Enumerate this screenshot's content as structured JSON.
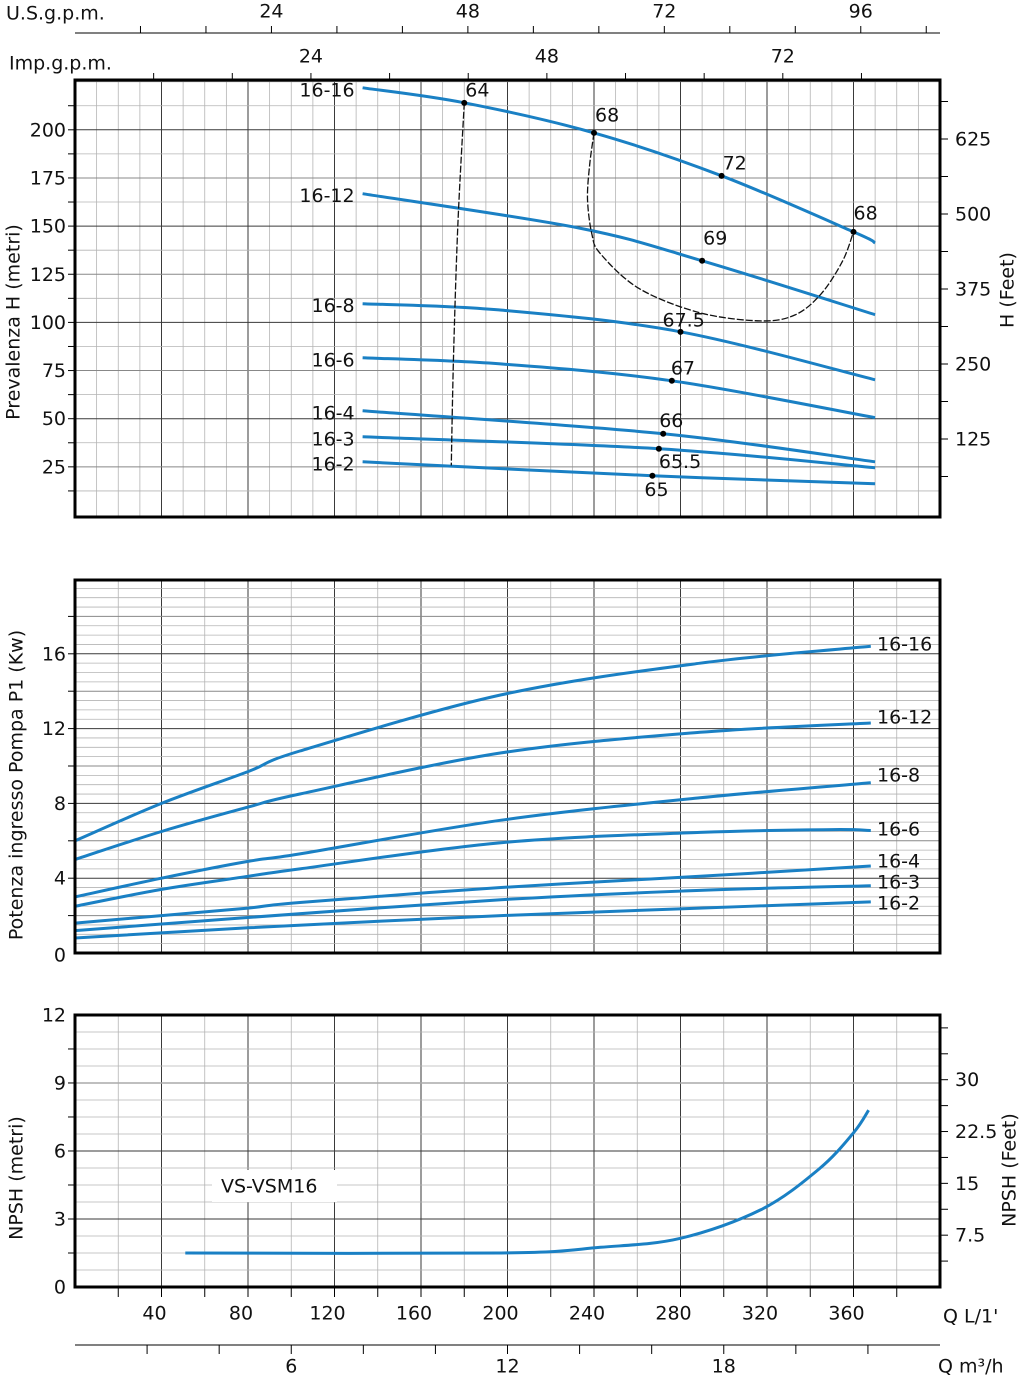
{
  "colors": {
    "curve": "#1a80c4",
    "efficiency_line": "#111111",
    "grid_light": "#b4b4b4",
    "grid_dark": "#3a3a3a",
    "frame": "#000000"
  },
  "top_axes": {
    "usgpm": {
      "label": "U.S.g.p.m.",
      "ticks": [
        24,
        48,
        72,
        96
      ]
    },
    "impgpm": {
      "label": "Imp.g.p.m.",
      "ticks": [
        24,
        48,
        72
      ]
    }
  },
  "bottom_axes": {
    "lmin": {
      "label": "Q L/1'",
      "ticks": [
        40,
        80,
        120,
        160,
        200,
        240,
        280,
        320,
        360
      ]
    },
    "m3h": {
      "label": "Q m³/h",
      "ticks": [
        6,
        12,
        18
      ]
    }
  },
  "chart_data": [
    {
      "type": "line",
      "title": "",
      "xlabel": "Q L/1'",
      "ylabel": "Prevalenza H (metri)",
      "ylabel_right": "H (Feet)",
      "xlim": [
        0,
        400
      ],
      "ylim": [
        0,
        225
      ],
      "yticks": [
        25,
        50,
        75,
        100,
        125,
        150,
        175,
        200
      ],
      "yticks_right": [
        125,
        250,
        375,
        500,
        625
      ],
      "grid": true,
      "series": [
        {
          "name": "16-16",
          "points": [
            [
              133,
              221.8
            ],
            [
              180,
              214
            ],
            [
              240,
              198.4
            ],
            [
              299,
              176.1
            ],
            [
              360,
              147
            ],
            [
              370,
              141.3
            ]
          ]
        },
        {
          "name": "16-12",
          "points": [
            [
              133,
              166.8
            ],
            [
              233,
              149
            ],
            [
              290,
              132
            ],
            [
              370,
              104
            ]
          ]
        },
        {
          "name": "16-8",
          "points": [
            [
              133,
              109.7
            ],
            [
              196,
              106.5
            ],
            [
              280,
              95.1
            ],
            [
              370,
              70.2
            ]
          ]
        },
        {
          "name": "16-6",
          "points": [
            [
              133,
              81.6
            ],
            [
              196,
              78.5
            ],
            [
              276,
              69.7
            ],
            [
              370,
              50.5
            ]
          ]
        },
        {
          "name": "16-4",
          "points": [
            [
              133,
              54.1
            ],
            [
              272,
              42.2
            ],
            [
              370,
              27.6
            ]
          ]
        },
        {
          "name": "16-3",
          "points": [
            [
              133,
              40.6
            ],
            [
              270,
              34.4
            ],
            [
              370,
              24.5
            ]
          ]
        },
        {
          "name": "16-2",
          "points": [
            [
              133,
              27.6
            ],
            [
              267,
              20.4
            ],
            [
              370,
              16.2
            ]
          ]
        }
      ],
      "efficiency_points": [
        {
          "label": "64",
          "x": 180,
          "y": 214
        },
        {
          "label": "68",
          "x": 240,
          "y": 198.4
        },
        {
          "label": "72",
          "x": 299,
          "y": 176.1
        },
        {
          "label": "68",
          "x": 360,
          "y": 147
        },
        {
          "label": "69",
          "x": 290,
          "y": 132
        },
        {
          "label": "67.5",
          "x": 280,
          "y": 95.1
        },
        {
          "label": "67",
          "x": 276,
          "y": 69.7
        },
        {
          "label": "66",
          "x": 272,
          "y": 42.2
        },
        {
          "label": "65.5",
          "x": 270,
          "y": 34.4
        },
        {
          "label": "65",
          "x": 267,
          "y": 20.4
        }
      ],
      "efficiency_lines": [
        {
          "efficiency": "64",
          "points": [
            [
              180,
              214
            ],
            [
              177,
              150
            ],
            [
              175,
              80
            ],
            [
              174,
              25.7
            ]
          ]
        },
        {
          "efficiency": "68",
          "points": [
            [
              240,
              198.4
            ],
            [
              238,
              182
            ],
            [
              237,
              164
            ],
            [
              239,
              146
            ],
            [
              243,
              135.6
            ],
            [
              261,
              117.5
            ],
            [
              289,
              105
            ],
            [
              317,
              100.8
            ],
            [
              333,
              103.9
            ],
            [
              345,
              114.8
            ],
            [
              355,
              132
            ],
            [
              360,
              147
            ]
          ]
        }
      ]
    },
    {
      "type": "line",
      "title": "",
      "xlabel": "Q L/1'",
      "ylabel": "Potenza ingresso Pompa P1 (Kw)",
      "xlim": [
        0,
        400
      ],
      "ylim": [
        0,
        20
      ],
      "yticks": [
        0,
        4,
        8,
        12,
        16
      ],
      "grid": true,
      "series": [
        {
          "name": "16-16",
          "points": [
            [
              0,
              6.0
            ],
            [
              40,
              8.0
            ],
            [
              80,
              9.7
            ],
            [
              104,
              10.8
            ],
            [
              197,
              13.8
            ],
            [
              289,
              15.5
            ],
            [
              368,
              16.4
            ]
          ]
        },
        {
          "name": "16-12",
          "points": [
            [
              0,
              5.0
            ],
            [
              40,
              6.5
            ],
            [
              80,
              7.8
            ],
            [
              104,
              8.5
            ],
            [
              197,
              10.7
            ],
            [
              289,
              11.8
            ],
            [
              368,
              12.3
            ]
          ]
        },
        {
          "name": "16-8",
          "points": [
            [
              0,
              3.0
            ],
            [
              40,
              4.0
            ],
            [
              80,
              4.9
            ],
            [
              104,
              5.3
            ],
            [
              197,
              7.1
            ],
            [
              289,
              8.3
            ],
            [
              368,
              9.1
            ]
          ]
        },
        {
          "name": "16-6",
          "points": [
            [
              0,
              2.5
            ],
            [
              40,
              3.4
            ],
            [
              80,
              4.1
            ],
            [
              104,
              4.5
            ],
            [
              197,
              5.9
            ],
            [
              289,
              6.45
            ],
            [
              350,
              6.6
            ],
            [
              368,
              6.55
            ]
          ]
        },
        {
          "name": "16-4",
          "points": [
            [
              0,
              1.6
            ],
            [
              40,
              2.0
            ],
            [
              80,
              2.4
            ],
            [
              104,
              2.7
            ],
            [
              197,
              3.5
            ],
            [
              289,
              4.1
            ],
            [
              368,
              4.65
            ]
          ]
        },
        {
          "name": "16-3",
          "points": [
            [
              0,
              1.2
            ],
            [
              80,
              1.9
            ],
            [
              197,
              2.85
            ],
            [
              289,
              3.35
            ],
            [
              368,
              3.6
            ]
          ]
        },
        {
          "name": "16-2",
          "points": [
            [
              0,
              0.8
            ],
            [
              80,
              1.35
            ],
            [
              197,
              2.0
            ],
            [
              289,
              2.4
            ],
            [
              368,
              2.73
            ]
          ]
        }
      ]
    },
    {
      "type": "line",
      "title": "",
      "xlabel": "Q L/1'",
      "ylabel": "NPSH (metri)",
      "ylabel_right": "NPSH (Feet)",
      "xlim": [
        0,
        400
      ],
      "ylim": [
        0,
        12
      ],
      "yticks": [
        0,
        3,
        6,
        9,
        12
      ],
      "yticks_right": [
        7.5,
        15,
        22.5,
        30
      ],
      "grid": true,
      "annotation": "VS-VSM16",
      "series": [
        {
          "points": [
            [
              51,
              1.5
            ],
            [
              197,
              1.5
            ],
            [
              243,
              1.75
            ],
            [
              280,
              2.15
            ],
            [
              317,
              3.4
            ],
            [
              344,
              5.2
            ],
            [
              360,
              6.8
            ],
            [
              367,
              7.8
            ]
          ]
        }
      ]
    }
  ]
}
